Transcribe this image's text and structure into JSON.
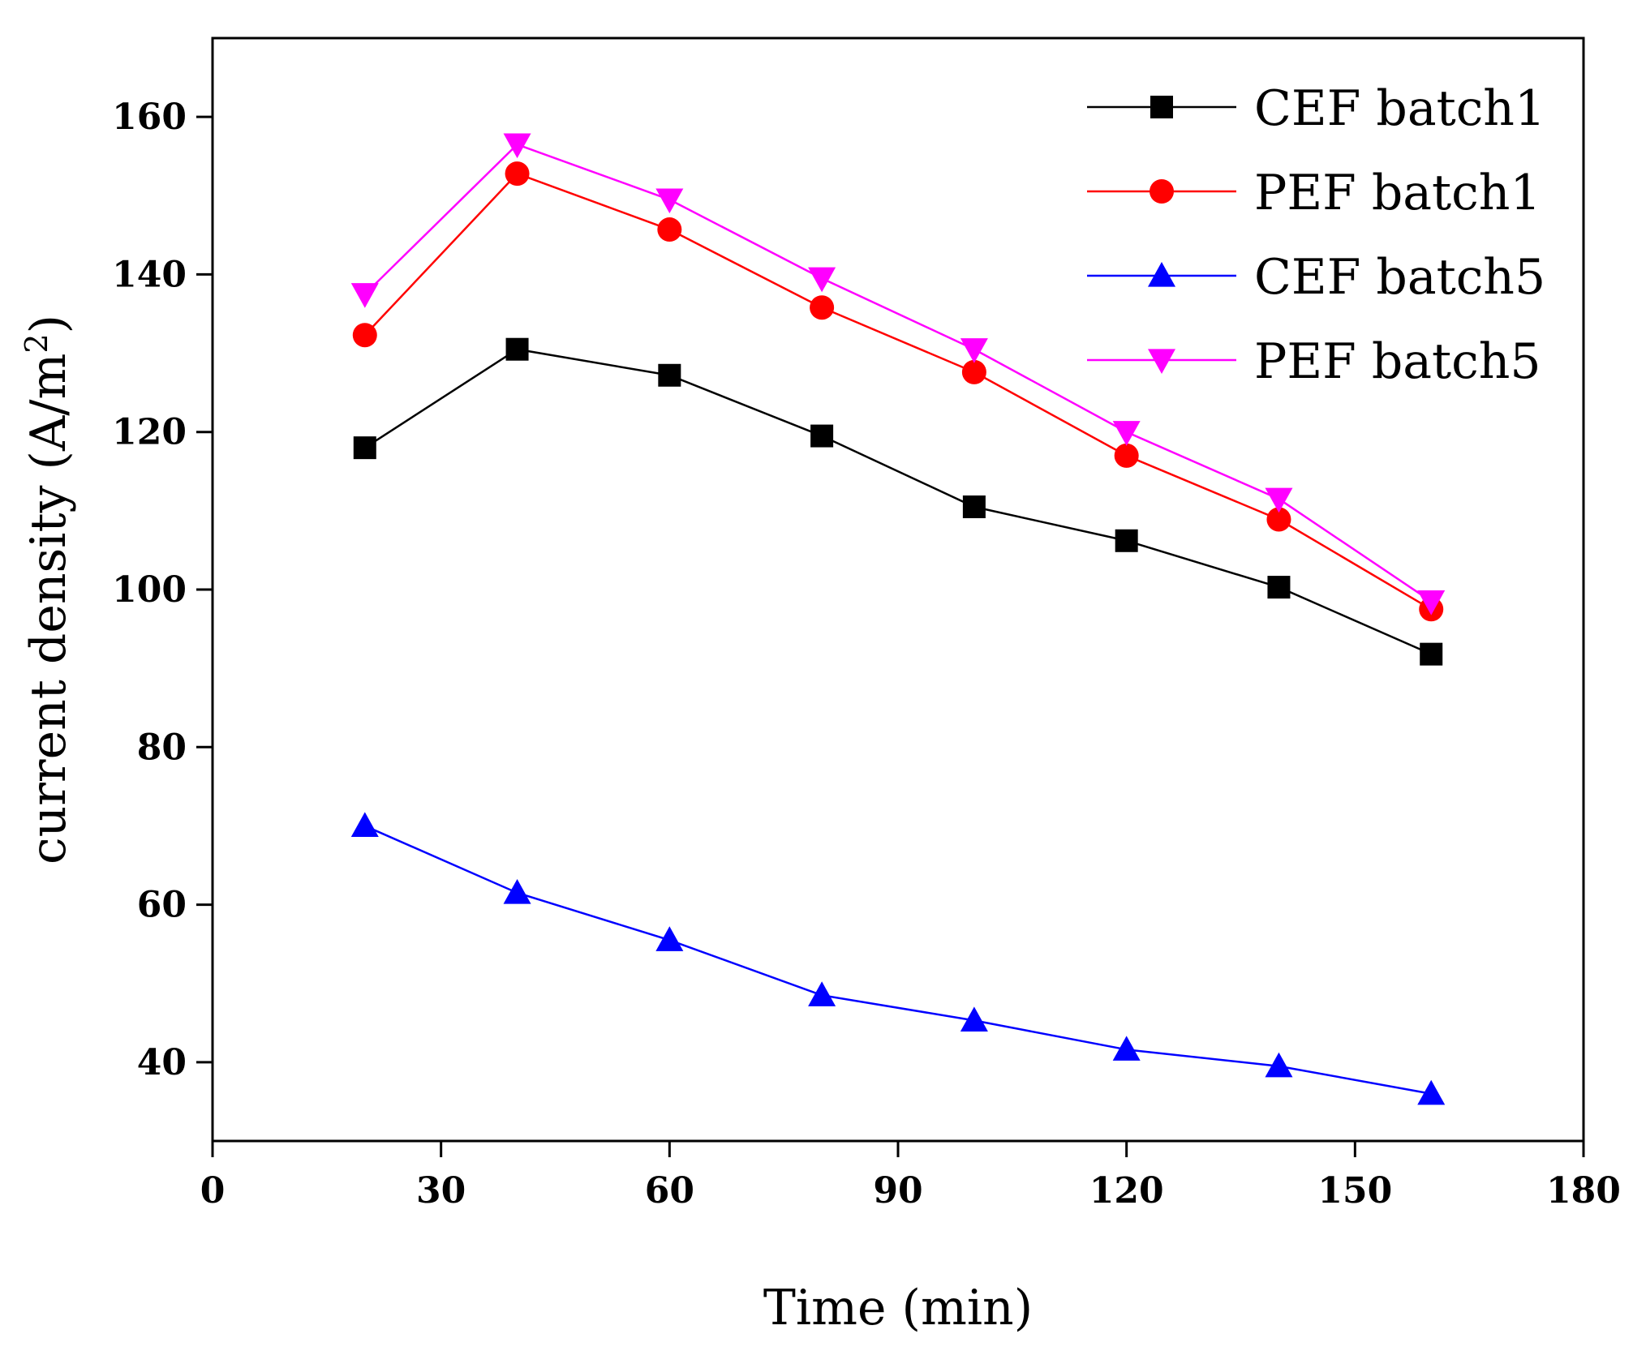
{
  "chart_data": {
    "type": "line",
    "xlabel": "Time (min)",
    "ylabel_main": "current density (A/m",
    "ylabel_sup": "2",
    "ylabel_end": ")",
    "xlim": [
      0,
      180
    ],
    "ylim": [
      30,
      170
    ],
    "xticks": [
      0,
      30,
      60,
      90,
      120,
      150,
      180
    ],
    "yticks": [
      40,
      60,
      80,
      100,
      120,
      140,
      160
    ],
    "grid": false,
    "legend_position": "top-right",
    "series": [
      {
        "name": "CEF batch1",
        "color": "#000000",
        "marker": "square",
        "x": [
          20,
          40,
          60,
          80,
          100,
          120,
          140,
          160
        ],
        "y": [
          118,
          130.5,
          127.2,
          119.5,
          110.5,
          106.2,
          100.3,
          91.8
        ]
      },
      {
        "name": "PEF batch1",
        "color": "#ff0000",
        "marker": "circle",
        "x": [
          20,
          40,
          60,
          80,
          100,
          120,
          140,
          160
        ],
        "y": [
          132.3,
          152.8,
          145.7,
          135.8,
          127.6,
          117,
          108.9,
          97.5
        ]
      },
      {
        "name": "CEF batch5",
        "color": "#0000ff",
        "marker": "triangle-up",
        "x": [
          20,
          40,
          60,
          80,
          100,
          120,
          140,
          160
        ],
        "y": [
          70,
          61.5,
          55.5,
          48.5,
          45.3,
          41.6,
          39.5,
          36
        ]
      },
      {
        "name": "PEF batch5",
        "color": "#ff00ff",
        "marker": "triangle-down",
        "x": [
          20,
          40,
          60,
          80,
          100,
          120,
          140,
          160
        ],
        "y": [
          137.5,
          156.5,
          149.5,
          139.5,
          130.5,
          120,
          111.5,
          98.5
        ]
      }
    ]
  }
}
